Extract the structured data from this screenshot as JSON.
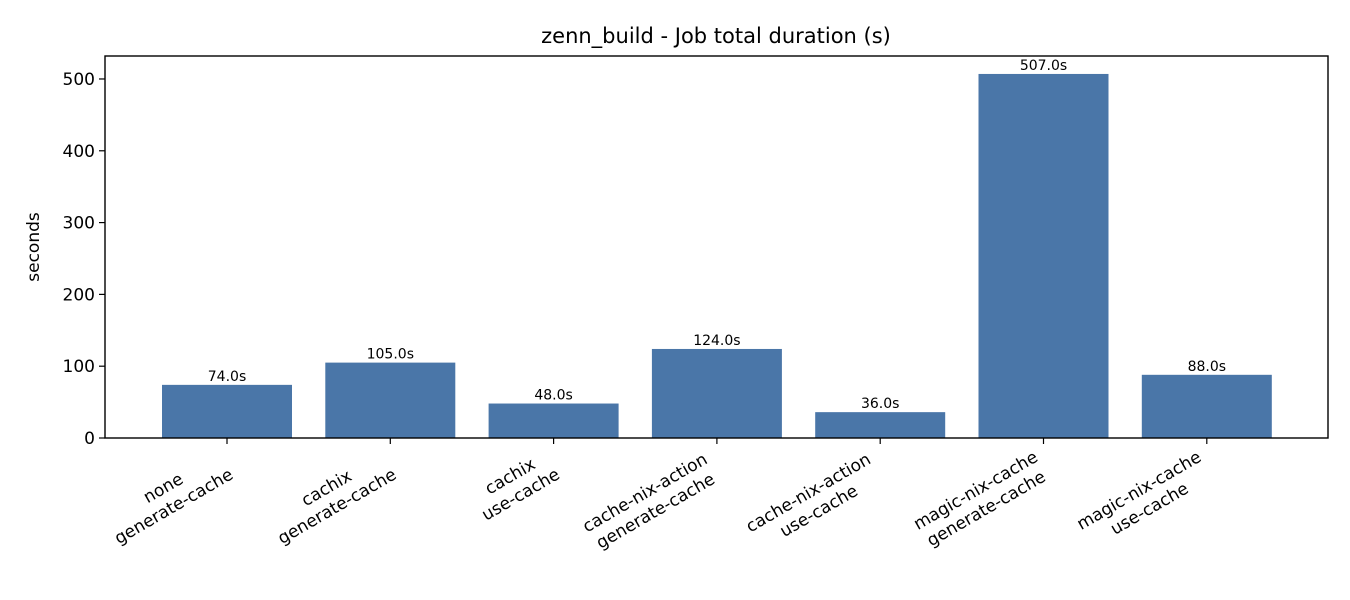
{
  "chart_data": {
    "type": "bar",
    "title": "zenn_build - Job total duration (s)",
    "xlabel": "",
    "ylabel": "seconds",
    "ylim": [
      0,
      532
    ],
    "yticks": [
      0,
      100,
      200,
      300,
      400,
      500
    ],
    "categories": [
      [
        "none",
        "generate-cache"
      ],
      [
        "cachix",
        "generate-cache"
      ],
      [
        "cachix",
        "use-cache"
      ],
      [
        "cache-nix-action",
        "generate-cache"
      ],
      [
        "cache-nix-action",
        "use-cache"
      ],
      [
        "magic-nix-cache",
        "generate-cache"
      ],
      [
        "magic-nix-cache",
        "use-cache"
      ]
    ],
    "values": [
      74.0,
      105.0,
      48.0,
      124.0,
      36.0,
      507.0,
      88.0
    ],
    "data_labels": [
      "74.0s",
      "105.0s",
      "48.0s",
      "124.0s",
      "36.0s",
      "507.0s",
      "88.0s"
    ],
    "bar_color": "#4a76a8",
    "grid": false,
    "legend": "none"
  }
}
